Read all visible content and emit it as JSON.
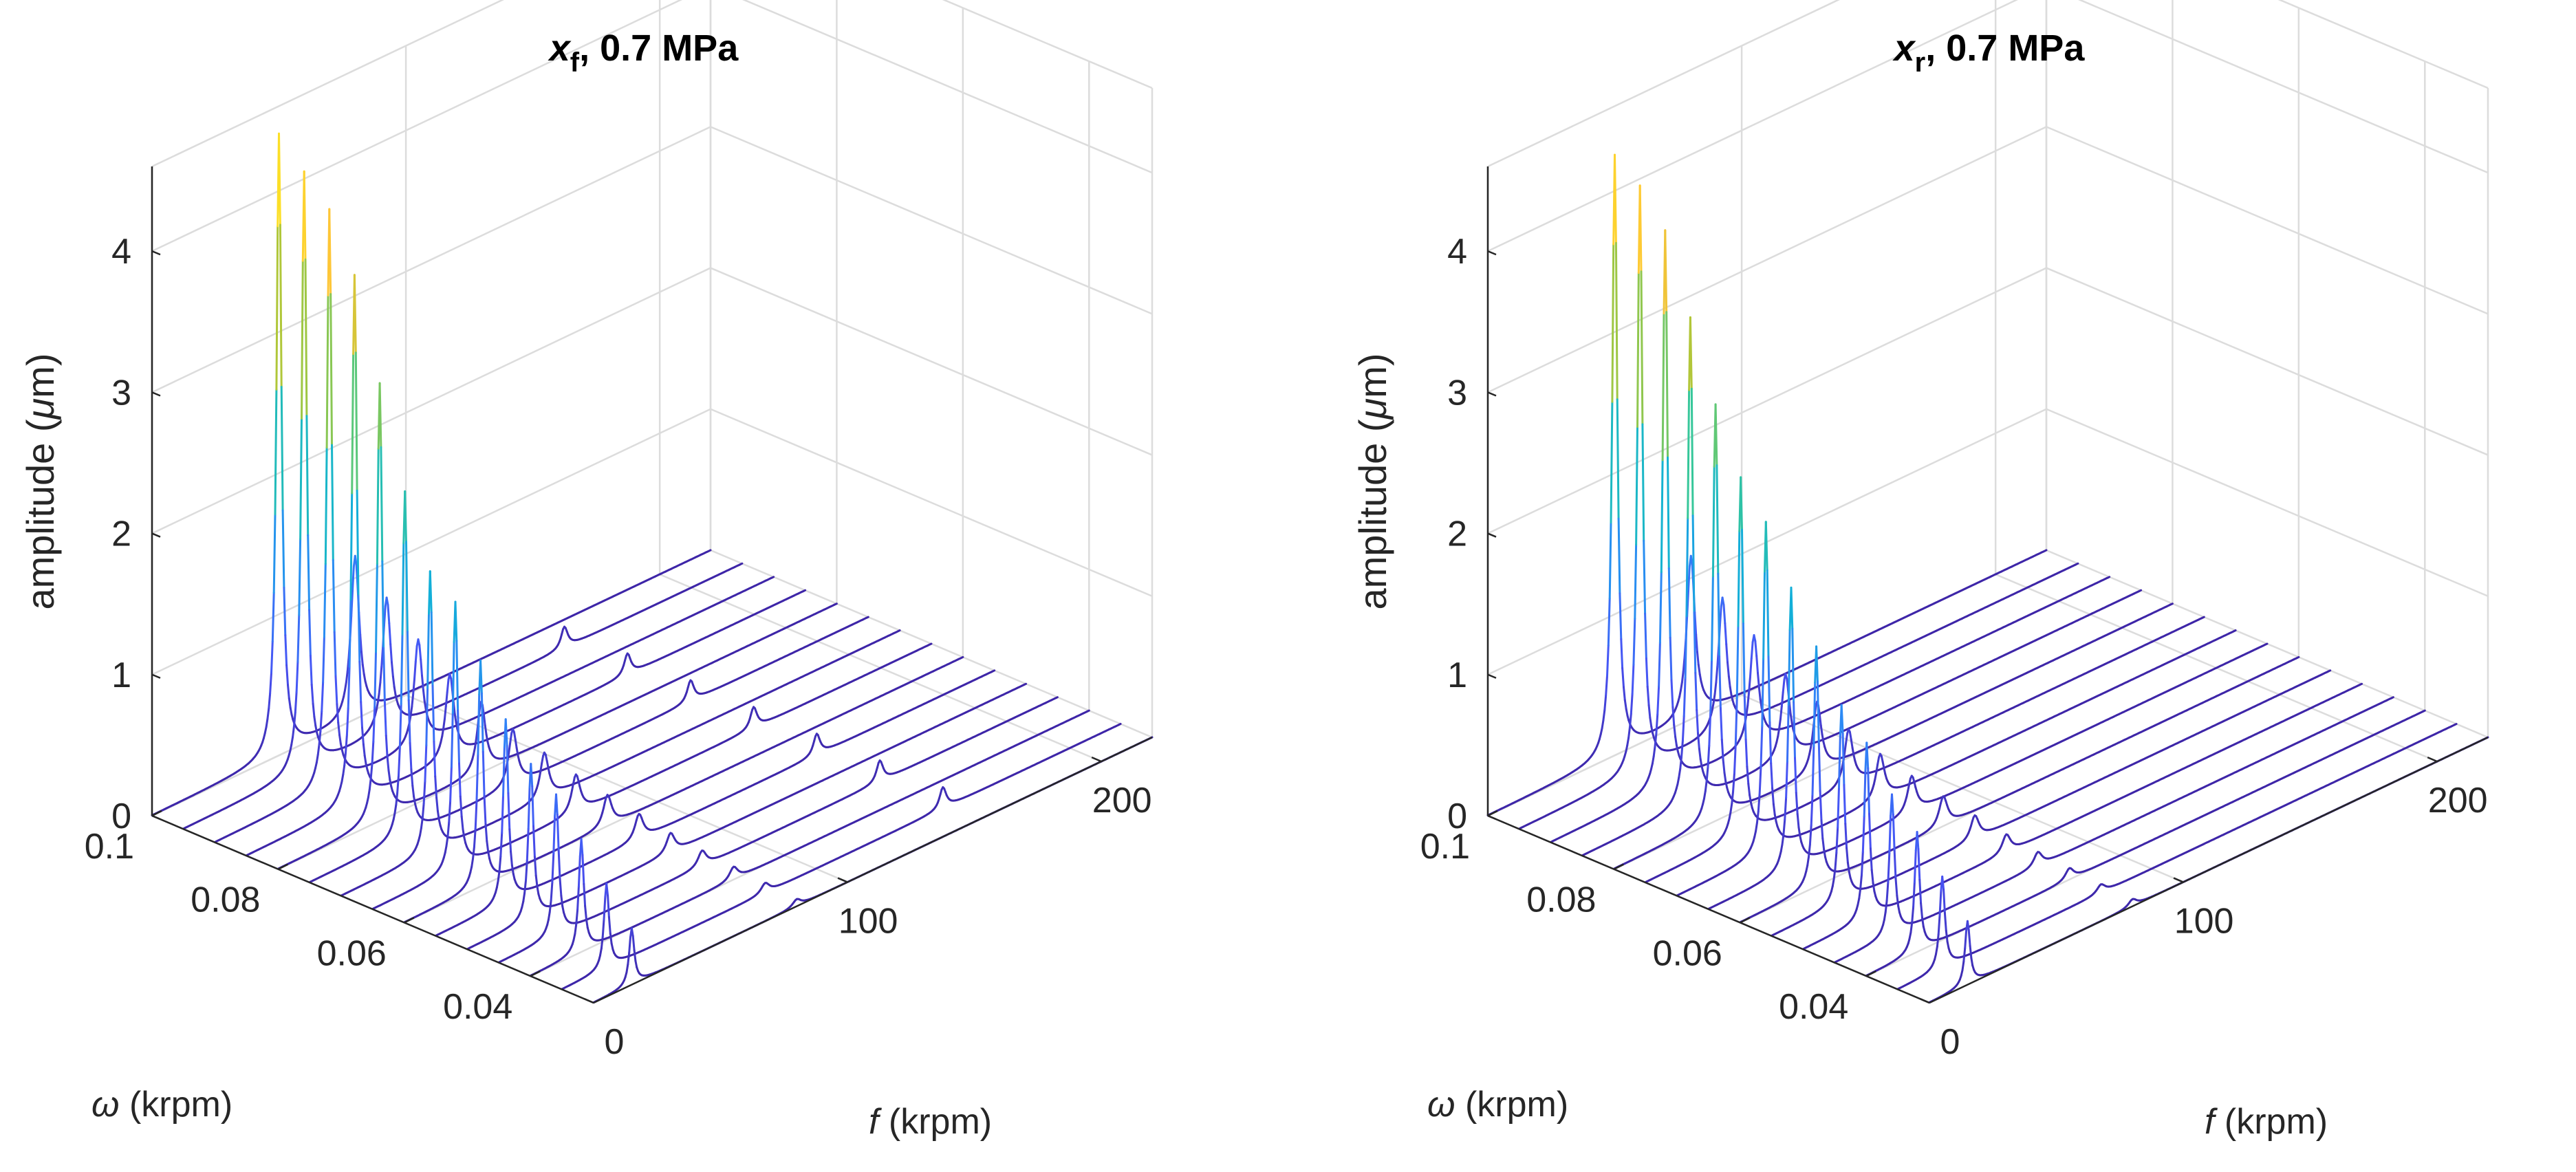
{
  "figure": {
    "background": "#ffffff",
    "axis_color": "#262626",
    "grid_color": "#dcdcdc"
  },
  "chart_data": [
    {
      "type": "waterfall-3d",
      "title": {
        "var": "x",
        "sub": "f",
        "rest": ", 0.7 MPa"
      },
      "zlabel": {
        "pre": "amplitude (",
        "greek": "μ",
        "post": "m)"
      },
      "ylabel": {
        "greek": "ω",
        "post": " (krpm)"
      },
      "xlabel": {
        "italic": "f",
        "post": " (krpm)"
      },
      "xlim": [
        0,
        220
      ],
      "ylim": [
        0.03,
        0.1
      ],
      "zlim": [
        0,
        4.6
      ],
      "ztick_labels": [
        "0",
        "1",
        "2",
        "3",
        "4"
      ],
      "ytick_labels": [
        "0.1",
        "0.08",
        "0.06",
        "0.04"
      ],
      "xtick_labels": [
        "0",
        "100",
        "200"
      ],
      "grid": true,
      "colormap": "parula",
      "omega": [
        0.1,
        0.095,
        0.09,
        0.085,
        0.08,
        0.075,
        0.07,
        0.065,
        0.06,
        0.055,
        0.05,
        0.045,
        0.04,
        0.035,
        0.03
      ],
      "sync_peak_amplitude": [
        4.4,
        4.25,
        4.1,
        3.75,
        3.1,
        2.45,
        2.0,
        1.9,
        1.6,
        1.3,
        1.1,
        1.0,
        0.8,
        0.6,
        0.4
      ],
      "fixed_peak_frequency": 80,
      "fixed_peak_amplitude": [
        1.15,
        0.95,
        0.75,
        0.6,
        0.5,
        0.4,
        0.33,
        0.27,
        0.22,
        0.18,
        0.14,
        0.11,
        0.09,
        0.07,
        0.05
      ],
      "harmonic_amplitude": [
        0.0,
        0.15,
        0.0,
        0.15,
        0.0,
        0.15,
        0.0,
        0.15,
        0.0,
        0.15,
        0.0,
        0.15,
        0.0,
        0.15,
        0.0
      ]
    },
    {
      "type": "waterfall-3d",
      "title": {
        "var": "x",
        "sub": "r",
        "rest": ", 0.7 MPa"
      },
      "zlabel": {
        "pre": "amplitude (",
        "greek": "μ",
        "post": "m)"
      },
      "ylabel": {
        "greek": "ω",
        "post": " (krpm)"
      },
      "xlabel": {
        "italic": "f",
        "post": " (krpm)"
      },
      "xlim": [
        0,
        220
      ],
      "ylim": [
        0.03,
        0.1
      ],
      "zlim": [
        0,
        4.6
      ],
      "ztick_labels": [
        "0",
        "1",
        "2",
        "3",
        "4"
      ],
      "ytick_labels": [
        "0.1",
        "0.08",
        "0.06",
        "0.04"
      ],
      "xtick_labels": [
        "0",
        "100",
        "200"
      ],
      "grid": true,
      "colormap": "parula",
      "omega": [
        0.1,
        0.095,
        0.09,
        0.085,
        0.08,
        0.075,
        0.07,
        0.065,
        0.06,
        0.055,
        0.05,
        0.045,
        0.04,
        0.035,
        0.03
      ],
      "sync_peak_amplitude": [
        4.25,
        4.15,
        3.95,
        3.45,
        2.95,
        2.55,
        2.35,
        2.0,
        1.7,
        1.4,
        1.25,
        1.0,
        0.85,
        0.65,
        0.45
      ],
      "fixed_peak_frequency": 80,
      "fixed_peak_amplitude": [
        1.15,
        0.95,
        0.78,
        0.6,
        0.5,
        0.4,
        0.32,
        0.26,
        0.21,
        0.17,
        0.13,
        0.1,
        0.08,
        0.06,
        0.05
      ],
      "harmonic_amplitude": [
        0,
        0,
        0,
        0,
        0,
        0,
        0,
        0,
        0,
        0,
        0,
        0,
        0,
        0,
        0
      ]
    }
  ]
}
